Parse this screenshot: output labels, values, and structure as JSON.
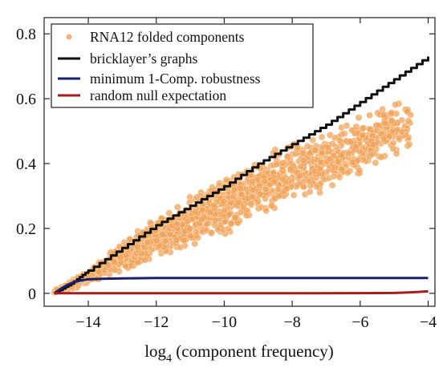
{
  "chart_data": {
    "type": "scatter",
    "xlabel": "log",
    "xlabel_sub": "4",
    "xlabel_rest": " (component frequency)",
    "ylabel": "",
    "xlim": [
      -15.3,
      -3.8
    ],
    "ylim": [
      -0.04,
      0.85
    ],
    "x_ticks": [
      -14,
      -12,
      -10,
      -8,
      -6,
      -4
    ],
    "x_tick_labels": [
      "−14",
      "−12",
      "−10",
      "−8",
      "−6",
      "−4"
    ],
    "y_ticks": [
      0,
      0.2,
      0.4,
      0.6,
      0.8
    ],
    "y_tick_labels": [
      "0",
      "0.2",
      "0.4",
      "0.6",
      "0.8"
    ],
    "grid": false,
    "legend_position": "top-left",
    "series": [
      {
        "name": "RNA12 folded components",
        "kind": "scatter",
        "color": "#f0a35a",
        "band": [
          {
            "x": -15.0,
            "lo": 0.0,
            "hi": 0.01
          },
          {
            "x": -14.5,
            "lo": 0.01,
            "hi": 0.04
          },
          {
            "x": -14.0,
            "lo": 0.03,
            "hi": 0.07
          },
          {
            "x": -13.0,
            "lo": 0.07,
            "hi": 0.16
          },
          {
            "x": -12.0,
            "lo": 0.1,
            "hi": 0.24
          },
          {
            "x": -11.0,
            "lo": 0.14,
            "hi": 0.3
          },
          {
            "x": -10.0,
            "lo": 0.18,
            "hi": 0.37
          },
          {
            "x": -9.0,
            "lo": 0.22,
            "hi": 0.42
          },
          {
            "x": -8.0,
            "lo": 0.27,
            "hi": 0.47
          },
          {
            "x": -7.0,
            "lo": 0.31,
            "hi": 0.51
          },
          {
            "x": -6.0,
            "lo": 0.36,
            "hi": 0.55
          },
          {
            "x": -5.0,
            "lo": 0.41,
            "hi": 0.59
          },
          {
            "x": -4.5,
            "lo": 0.43,
            "hi": 0.61
          }
        ]
      },
      {
        "name": "bricklayer’s graphs",
        "kind": "line",
        "color": "#111111",
        "x": [
          -15.0,
          -14.5,
          -14.0,
          -13.0,
          -12.0,
          -11.0,
          -10.0,
          -9.0,
          -8.0,
          -7.0,
          -6.0,
          -5.0,
          -4.0
        ],
        "y": [
          0.0,
          0.03,
          0.07,
          0.14,
          0.21,
          0.27,
          0.33,
          0.4,
          0.46,
          0.52,
          0.59,
          0.66,
          0.73
        ]
      },
      {
        "name": "minimum 1-Comp. robustness",
        "kind": "line",
        "color": "#1a1f6e",
        "x": [
          -15.0,
          -14.8,
          -14.6,
          -14.4,
          -14.2,
          -14.0,
          -13.5,
          -13.0,
          -12.0,
          -10.0,
          -8.0,
          -6.0,
          -4.0
        ],
        "y": [
          0.0,
          0.015,
          0.027,
          0.035,
          0.04,
          0.043,
          0.045,
          0.046,
          0.047,
          0.047,
          0.047,
          0.047,
          0.047
        ]
      },
      {
        "name": "random null expectation",
        "kind": "line",
        "color": "#a51c1c",
        "x": [
          -15.0,
          -12.0,
          -10.0,
          -8.0,
          -6.0,
          -5.0,
          -4.5,
          -4.0
        ],
        "y": [
          0.0,
          0.0,
          0.0,
          0.0,
          0.0005,
          0.001,
          0.003,
          0.006
        ]
      }
    ]
  }
}
